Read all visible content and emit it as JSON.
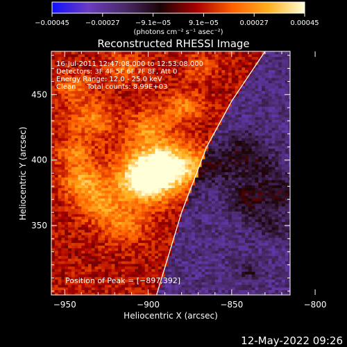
{
  "chart_data": {
    "type": "heatmap",
    "title": "Reconstructed RHESSI Image",
    "xlabel": "Heliocentric X (arcsec)",
    "ylabel": "Heliocentric Y (arcsec)",
    "xlim": [
      -958,
      -815
    ],
    "ylim": [
      297,
      483
    ],
    "x_ticks": [
      -950,
      -900,
      -850,
      -800
    ],
    "y_ticks": [
      350,
      400,
      450
    ],
    "x_tick_labels": [
      "−950",
      "−900",
      "−850",
      "−800"
    ],
    "y_tick_labels": [
      "350",
      "400",
      "450"
    ],
    "colorbar": {
      "min": -0.00045,
      "max": 0.00045,
      "ticks": [
        "−0.00045",
        "−0.00027",
        "−9.1e−05",
        "9.1e−05",
        "0.00027",
        "0.00045"
      ],
      "unit_label": "(photons cm⁻² s⁻¹ asec⁻²)",
      "colors": [
        "#1010ff",
        "#6a3cc0",
        "#4a2a6a",
        "#1a0406",
        "#a80000",
        "#ff6000",
        "#ffb020",
        "#ffffd8"
      ]
    },
    "annotations": [
      "16-Jul-2011 12:47:08.000 to 12:53:08.000",
      "Detectors: 3F 4F 5F 6F 7F 8F, Att 0",
      "Energy Range: 12.0 - 25.0 keV",
      "Clean     Total counts: 8.99E+03"
    ],
    "peak_label": "Position of Peak = [−897,392]",
    "peak": {
      "x": -897,
      "y": 392
    },
    "limb": [
      [
        -895,
        297
      ],
      [
        -880,
        360
      ],
      [
        -865,
        410
      ],
      [
        -850,
        445
      ],
      [
        -830,
        483
      ]
    ],
    "grid": false,
    "legend": "none"
  },
  "footer": {
    "timestamp": "12-May-2022 09:26"
  }
}
